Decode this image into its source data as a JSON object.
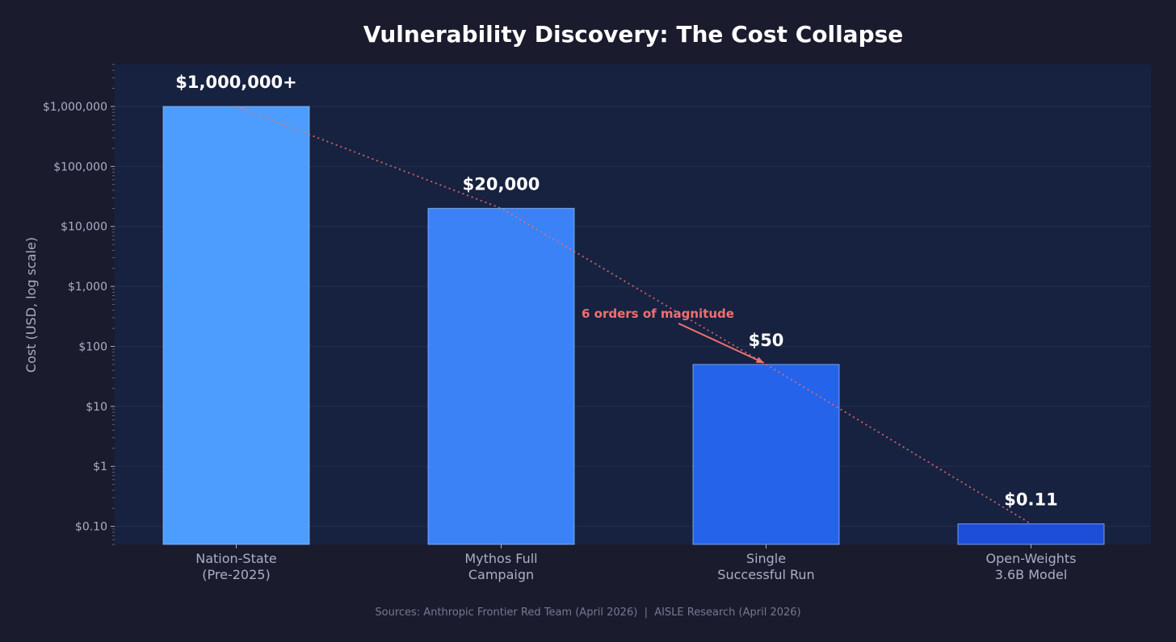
{
  "chart_data": {
    "type": "bar",
    "title": "Vulnerability Discovery: The Cost Collapse",
    "ylabel": "Cost (USD, log scale)",
    "xlabel": "",
    "yscale": "log",
    "ylim": [
      0.05,
      5000000
    ],
    "grid": true,
    "categories": [
      [
        "Nation-State",
        "(Pre-2025)"
      ],
      [
        "Mythos Full",
        "Campaign"
      ],
      [
        "Single",
        "Successful Run"
      ],
      [
        "Open-Weights",
        "3.6B Model"
      ]
    ],
    "values": [
      1000000,
      20000,
      50,
      0.11
    ],
    "value_labels": [
      "$1,000,000+",
      "$20,000",
      "$50",
      "$0.11"
    ],
    "bar_colors": [
      "#4c9dfd",
      "#3b82f6",
      "#2563eb",
      "#1d4ed8"
    ],
    "yticks": [
      {
        "value": 1000000,
        "label": "$1,000,000"
      },
      {
        "value": 100000,
        "label": "$100,000"
      },
      {
        "value": 10000,
        "label": "$10,000"
      },
      {
        "value": 1000,
        "label": "$1,000"
      },
      {
        "value": 100,
        "label": "$100"
      },
      {
        "value": 10,
        "label": "$10"
      },
      {
        "value": 1,
        "label": "$1"
      },
      {
        "value": 0.1,
        "label": "$0.10"
      }
    ],
    "trend_line": {
      "style": "dotted",
      "color": "#f07070"
    },
    "annotation": {
      "text": "6 orders of magnitude",
      "color": "#f07070",
      "points_to_category": 2
    },
    "source": "Sources: Anthropic Frontier Red Team (April 2026)  |  AISLE Research (April 2026)"
  },
  "colors": {
    "background": "#1b1b2e",
    "plot_background": "#172240",
    "grid": "#22304f",
    "tick_text": "#a8b0c6",
    "title_text": "#ffffff",
    "source_text": "#737a90"
  }
}
